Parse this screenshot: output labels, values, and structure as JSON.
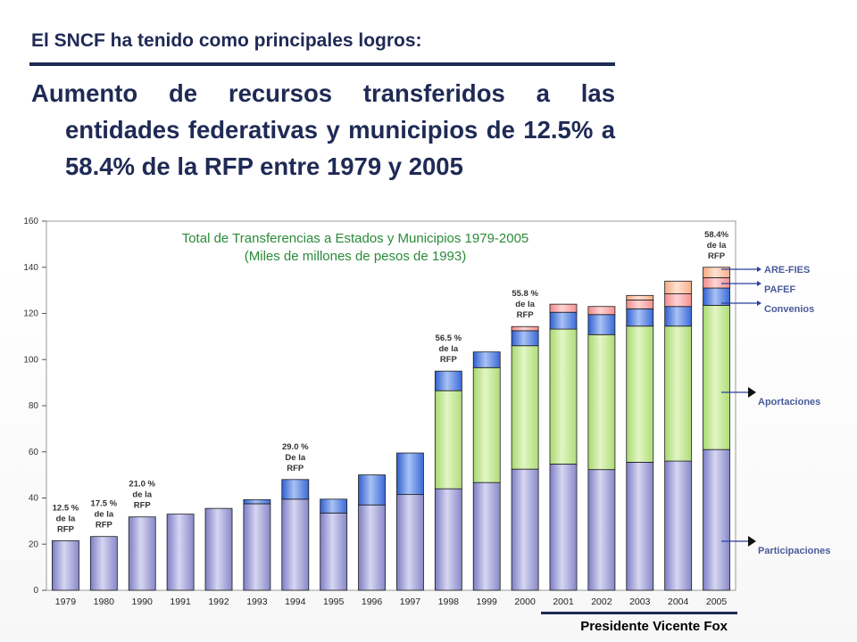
{
  "header": {
    "title": "El SNCF ha tenido como principales logros:",
    "bullet": "Aumento de recursos transferidos a las entidades federativas y municipios de 12.5% a 58.4% de la RFP entre 1979 y 2005"
  },
  "footer": {
    "name": "Presidente Vicente Fox"
  },
  "chart_data": {
    "type": "bar",
    "stacked": true,
    "title": "Total de Transferencias a Estados y Municipios 1979-2005",
    "subtitle": "(Miles de millones de pesos de 1993)",
    "xlabel": "",
    "ylabel": "",
    "ylim": [
      0,
      160
    ],
    "yticks": [
      0,
      20,
      40,
      60,
      80,
      100,
      120,
      140,
      160
    ],
    "grid": false,
    "legend": "right",
    "categories": [
      "1979",
      "1980",
      "1990",
      "1991",
      "1992",
      "1993",
      "1994",
      "1995",
      "1996",
      "1997",
      "1998",
      "1999",
      "2000",
      "2001",
      "2002",
      "2003",
      "2004",
      "2005"
    ],
    "series": [
      {
        "name": "Participaciones",
        "color": "#9f9fd8",
        "values": [
          21.5,
          23.3,
          31.8,
          33.0,
          35.5,
          37.5,
          39.5,
          33.5,
          37.0,
          41.5,
          44.0,
          46.7,
          52.5,
          54.7,
          52.3,
          55.5,
          56.0,
          61.0
        ]
      },
      {
        "name": "Aportaciones",
        "color": "#c4e890",
        "values": [
          0,
          0,
          0,
          0,
          0,
          0,
          0,
          0,
          0,
          0,
          42.5,
          49.8,
          53.5,
          58.5,
          58.5,
          59.0,
          58.5,
          62.5
        ]
      },
      {
        "name": "Convenios",
        "color": "#4f82e6",
        "values": [
          0,
          0,
          0,
          0,
          0,
          1.8,
          8.5,
          6.0,
          13.0,
          18.0,
          8.5,
          6.8,
          6.5,
          7.3,
          8.7,
          7.5,
          8.5,
          7.5
        ]
      },
      {
        "name": "PAFEF",
        "color": "#ffaaaa",
        "values": [
          0,
          0,
          0,
          0,
          0,
          0,
          0,
          0,
          0,
          0,
          0,
          0,
          1.8,
          3.5,
          3.5,
          3.8,
          5.5,
          4.5
        ]
      },
      {
        "name": "ARE-FIES",
        "color": "#ffc8a8",
        "values": [
          0,
          0,
          0,
          0,
          0,
          0,
          0,
          0,
          0,
          0,
          0,
          0,
          0,
          0,
          0,
          2.0,
          5.5,
          4.5
        ]
      }
    ],
    "annotations": [
      {
        "category": "1979",
        "lines": [
          "12.5 %",
          "de la",
          "RFP"
        ]
      },
      {
        "category": "1980",
        "lines": [
          "17.5 %",
          "de la",
          "RFP"
        ]
      },
      {
        "category": "1990",
        "lines": [
          "21.0 %",
          "de la",
          "RFP"
        ]
      },
      {
        "category": "1994",
        "lines": [
          "29.0 %",
          "De la",
          "RFP"
        ]
      },
      {
        "category": "1998",
        "lines": [
          "56.5 %",
          "de la",
          "RFP"
        ]
      },
      {
        "category": "2000",
        "lines": [
          "55.8 %",
          "de la",
          "RFP"
        ]
      },
      {
        "category": "2005",
        "lines": [
          "58.4%",
          "de la",
          "RFP"
        ]
      }
    ]
  }
}
